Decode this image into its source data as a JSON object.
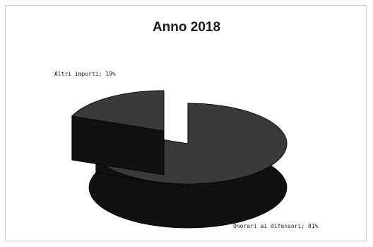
{
  "chart_data": {
    "type": "pie",
    "title": "Anno 2018",
    "style": "3d-exploded",
    "slices": [
      {
        "label": "Onorari ai difensori",
        "value": 81,
        "display": "Onorari ai difensori; 81%"
      },
      {
        "label": "Altri importi",
        "value": 19,
        "display": "Altri importi; 19%"
      }
    ],
    "colors": {
      "slice_top": "#3a3a3a",
      "slice_side": "#111111",
      "slice_edge": "#000000"
    }
  }
}
